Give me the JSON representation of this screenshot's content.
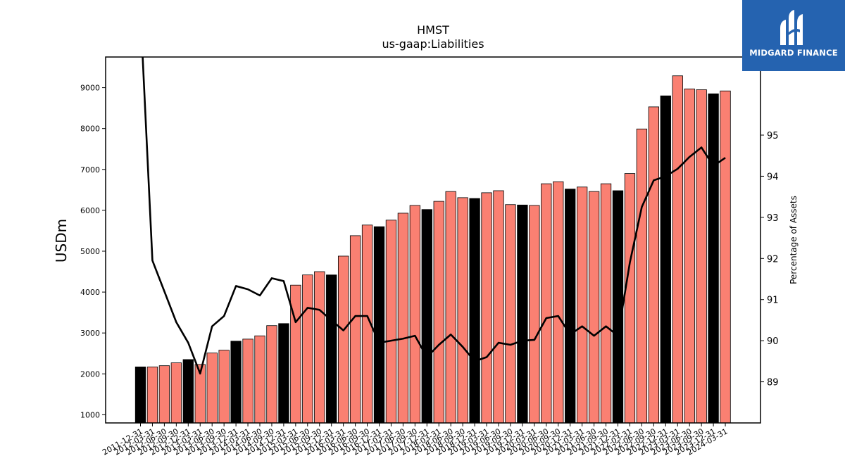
{
  "brand": {
    "name": "MIDGARD FINANCE",
    "logo_icon": "midgard-logo-icon",
    "color": "#2563b0"
  },
  "header": {
    "title": "HMST",
    "subtitle": "us-gaap:Liabilities"
  },
  "chart_data": {
    "type": "bar",
    "title": "HMST",
    "subtitle": "us-gaap:Liabilities",
    "ylabel": "USDm",
    "y2label": "Percentage of Assets",
    "ylim": [
      800,
      9750
    ],
    "y2lim": [
      88.0,
      96.9
    ],
    "yticks": [
      1000,
      2000,
      3000,
      4000,
      5000,
      6000,
      7000,
      8000,
      9000
    ],
    "y2ticks": [
      89,
      90,
      91,
      92,
      93,
      94,
      95
    ],
    "colors": {
      "q4_bar": "#000000",
      "other_bar": "#fa8072",
      "line": "#000000"
    },
    "categories": [
      "2011-12-31",
      "2012-03-31",
      "2012-06-30",
      "2012-09-30",
      "2012-12-31",
      "2013-03-31",
      "2013-06-30",
      "2013-09-30",
      "2013-12-31",
      "2014-03-31",
      "2014-06-30",
      "2014-09-30",
      "2014-12-31",
      "2015-03-31",
      "2015-06-30",
      "2015-09-30",
      "2015-12-31",
      "2016-03-31",
      "2016-06-30",
      "2016-09-30",
      "2016-12-31",
      "2017-03-31",
      "2017-06-30",
      "2017-09-30",
      "2017-12-31",
      "2018-03-31",
      "2018-06-30",
      "2018-09-30",
      "2018-12-31",
      "2019-03-31",
      "2019-06-30",
      "2019-09-30",
      "2019-12-31",
      "2020-03-31",
      "2020-06-30",
      "2020-09-30",
      "2020-12-31",
      "2021-03-31",
      "2021-06-30",
      "2021-09-30",
      "2021-12-31",
      "2022-03-31",
      "2022-06-30",
      "2022-09-30",
      "2022-12-31",
      "2023-03-31",
      "2023-06-30",
      "2023-09-30",
      "2023-12-31",
      "2024-03-31"
    ],
    "tick_labels": [
      "2011-12-31",
      "2012-03-31",
      "2012-06-30",
      "2012-09-30",
      "2012-12-31",
      "2013-03-31",
      "2013-06-30",
      "2013-09-30",
      "2013-12-31",
      "2014-03-31",
      "2014-06-30",
      "2014-09-30",
      "2014-12-31",
      "2015-03-31",
      "2015-06-30",
      "2015-09-30",
      "2015-12-31",
      "2016-03-31",
      "2016-06-30",
      "2016-09-30",
      "2016-12-31",
      "2017-03-31",
      "2017-06-30",
      "2017-09-30",
      "2017-12-31",
      "2018-03-31",
      "2018-06-30",
      "2018-09-30",
      "2018-12-31",
      "2019-03-31",
      "2019-06-30",
      "2019-09-30",
      "2019-12-31",
      "2020-03-31",
      "2020-06-30",
      "2020-09-30",
      "2020-12-31",
      "2021-03-31",
      "2021-06-30",
      "2021-09-30",
      "2021-12-31",
      "2022-03-31",
      "2022-06-30",
      "2022-09-30",
      "2022-12-31",
      "2023-03-31",
      "2023-06-30",
      "2023-09-30",
      "2023-12-31",
      "2024-03-31"
    ],
    "series": [
      {
        "type": "bar",
        "axis": "left",
        "values": [
          2170,
          2170,
          2200,
          2270,
          2350,
          2230,
          2510,
          2580,
          2800,
          2850,
          2930,
          3180,
          3230,
          4170,
          4420,
          4500,
          4420,
          4880,
          5380,
          5640,
          5600,
          5760,
          5930,
          6120,
          6020,
          6220,
          6460,
          6310,
          6290,
          6430,
          6480,
          6140,
          6130,
          6120,
          6650,
          6700,
          6520,
          6570,
          6460,
          6650,
          6480,
          6900,
          7990,
          8530,
          8800,
          9290,
          8970,
          8950,
          8850,
          8920
        ]
      },
      {
        "type": "line",
        "axis": "right",
        "values": [
          98.0,
          91.95,
          91.2,
          90.45,
          89.95,
          89.2,
          90.35,
          90.6,
          91.33,
          91.25,
          91.1,
          91.52,
          91.45,
          90.45,
          90.8,
          90.75,
          90.5,
          90.25,
          90.6,
          90.6,
          89.95,
          90.0,
          90.05,
          90.12,
          89.6,
          89.9,
          90.15,
          89.85,
          89.5,
          89.6,
          89.95,
          89.9,
          90.0,
          90.02,
          90.55,
          90.6,
          90.15,
          90.35,
          90.12,
          90.35,
          90.12,
          91.9,
          93.25,
          93.9,
          94.0,
          94.18,
          94.47,
          94.7,
          94.25,
          94.45
        ]
      }
    ]
  }
}
